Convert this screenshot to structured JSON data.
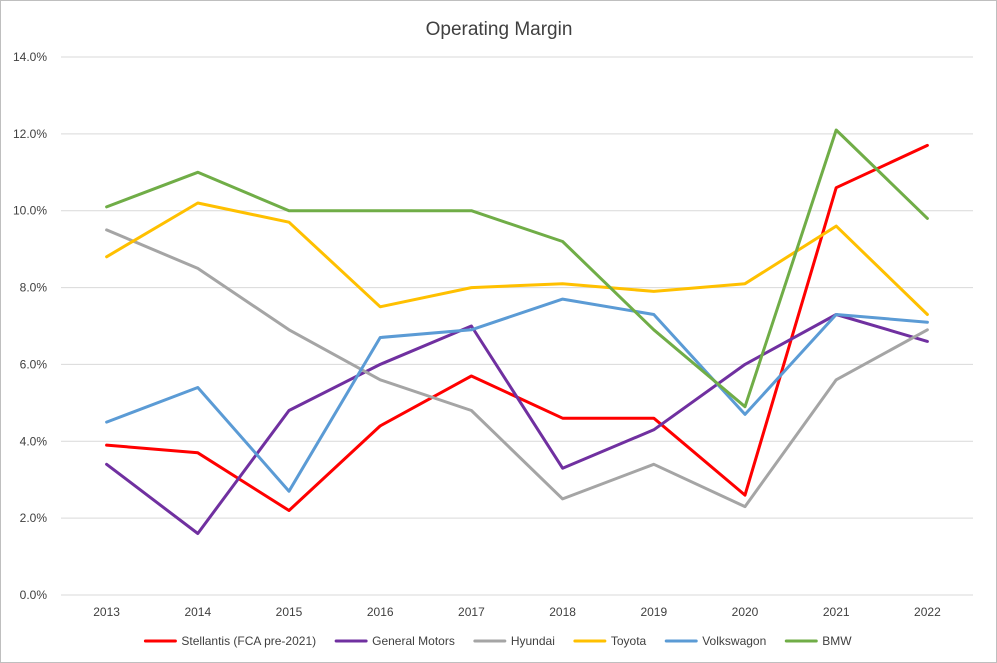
{
  "chart_data": {
    "type": "line",
    "title": "Operating Margin",
    "xlabel": "",
    "ylabel": "",
    "categories": [
      "2013",
      "2014",
      "2015",
      "2016",
      "2017",
      "2018",
      "2019",
      "2020",
      "2021",
      "2022"
    ],
    "ylim": [
      0,
      14
    ],
    "y_ticks": [
      "0.0%",
      "2.0%",
      "4.0%",
      "6.0%",
      "8.0%",
      "10.0%",
      "12.0%",
      "14.0%"
    ],
    "y_unit": "%",
    "grid": "horizontal",
    "legend_position": "bottom",
    "series": [
      {
        "name": "Stellantis (FCA pre-2021)",
        "color": "#ff0000",
        "values": [
          3.9,
          3.7,
          2.2,
          4.4,
          5.7,
          4.6,
          4.6,
          2.6,
          10.6,
          11.7
        ]
      },
      {
        "name": "General Motors",
        "color": "#7030a0",
        "values": [
          3.4,
          1.6,
          4.8,
          6.0,
          7.0,
          3.3,
          4.3,
          6.0,
          7.3,
          6.6
        ]
      },
      {
        "name": "Hyundai",
        "color": "#a5a5a5",
        "values": [
          9.5,
          8.5,
          6.9,
          5.6,
          4.8,
          2.5,
          3.4,
          2.3,
          5.6,
          6.9
        ]
      },
      {
        "name": "Toyota",
        "color": "#ffc000",
        "values": [
          8.8,
          10.2,
          9.7,
          7.5,
          8.0,
          8.1,
          7.9,
          8.1,
          9.6,
          7.3
        ]
      },
      {
        "name": "Volkswagon",
        "color": "#5b9bd5",
        "values": [
          4.5,
          5.4,
          2.7,
          6.7,
          6.9,
          7.7,
          7.3,
          4.7,
          7.3,
          7.1
        ]
      },
      {
        "name": "BMW",
        "color": "#70ad47",
        "values": [
          10.1,
          11.0,
          10.0,
          10.0,
          10.0,
          9.2,
          6.9,
          4.9,
          12.1,
          9.8
        ]
      }
    ]
  }
}
